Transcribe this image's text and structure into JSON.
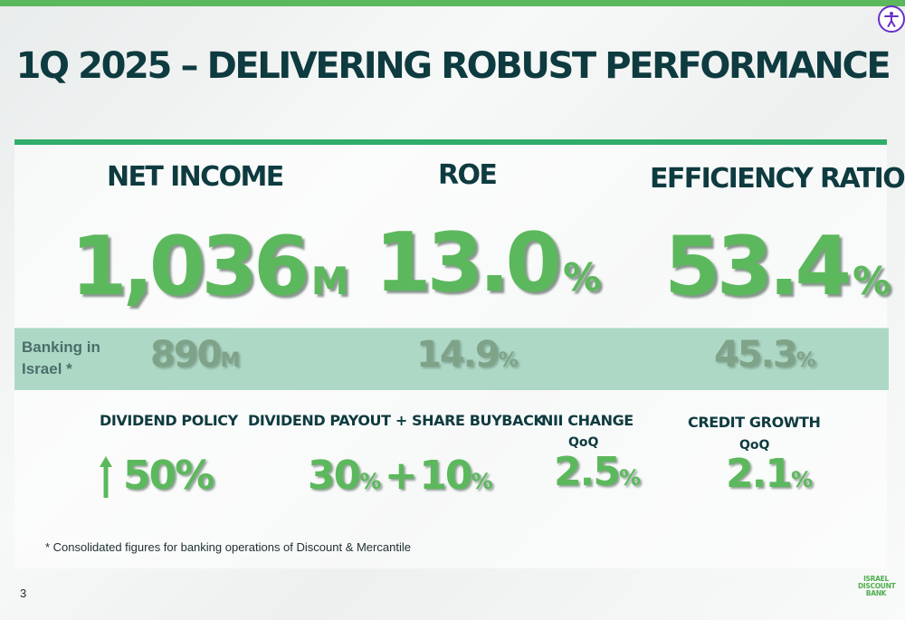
{
  "slide": {
    "title": "1Q 2025 – DELIVERING ROBUST PERFORMANCE",
    "page_number": "3",
    "footnote": "*  Consolidated figures for banking operations of Discount & Mercantile"
  },
  "kpis": {
    "net_income": {
      "label": "NET INCOME",
      "value": "1,036",
      "unit": "M"
    },
    "roe": {
      "label": "ROE",
      "value": "13.0",
      "unit": "%"
    },
    "efficiency_ratio": {
      "label": "EFFICIENCY RATIO",
      "value": "53.4",
      "unit": "%"
    }
  },
  "banking_in_israel": {
    "label_line1": "Banking in",
    "label_line2": "Israel *",
    "net_income": {
      "value": "890",
      "unit": "M"
    },
    "roe": {
      "value": "14.9",
      "unit": "%"
    },
    "efficiency_ratio": {
      "value": "45.3",
      "unit": "%"
    }
  },
  "secondary": {
    "dividend_policy": {
      "label": "DIVIDEND POLICY",
      "value": "50%"
    },
    "dividend_payout": {
      "label": "DIVIDEND PAYOUT + SHARE BUYBACK",
      "value1": "30",
      "unit1": "%",
      "plus": "+",
      "value2": "10",
      "unit2": "%"
    },
    "nii_change": {
      "label": "NII CHANGE",
      "sublabel": "QoQ",
      "value": "2.5",
      "unit": "%"
    },
    "credit_growth": {
      "label": "CREDIT GROWTH",
      "sublabel": "QoQ",
      "value": "2.1",
      "unit": "%"
    }
  },
  "logo": {
    "line1": "ISRAEL",
    "line2": "DISCOUNT",
    "line3": "BANK"
  },
  "colors": {
    "accent_green": "#5cb85c",
    "title_dark": "#0e3b3f",
    "band": "#aed8c6",
    "a11y_purple": "#6a2fc9"
  },
  "icons": {
    "accessibility": "accessibility-icon",
    "dividend_arrow": "arrow-up-icon"
  }
}
